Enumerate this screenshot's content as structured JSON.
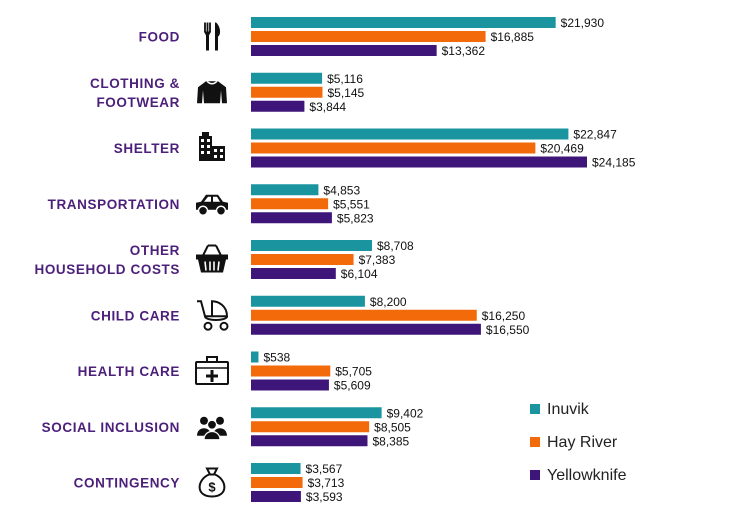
{
  "chart_data": {
    "type": "bar",
    "orientation": "horizontal",
    "categories": [
      [
        "FOOD"
      ],
      [
        "CLOTHING &",
        "FOOTWEAR"
      ],
      [
        "SHELTER"
      ],
      [
        "TRANSPORTATION"
      ],
      [
        "OTHER",
        "HOUSEHOLD COSTS"
      ],
      [
        "CHILD CARE"
      ],
      [
        "HEALTH CARE"
      ],
      [
        "SOCIAL INCLUSION"
      ],
      [
        "CONTINGENCY"
      ]
    ],
    "icons": [
      "fork-knife-icon",
      "sweater-icon",
      "building-icon",
      "car-icon",
      "basket-icon",
      "stroller-icon",
      "first-aid-kit-icon",
      "people-icon",
      "money-bag-icon"
    ],
    "series": [
      {
        "name": "Inuvik",
        "color": "#1a95a0",
        "values": [
          21930,
          5116,
          22847,
          4853,
          8708,
          8200,
          538,
          9402,
          3567
        ],
        "labels": [
          "$21,930",
          "$5,116",
          "$22,847",
          "$4,853",
          "$8,708",
          "$8,200",
          "$538",
          "$9,402",
          "$3,567"
        ]
      },
      {
        "name": "Hay River",
        "color": "#f26a0a",
        "values": [
          16885,
          5145,
          20469,
          5551,
          7383,
          16250,
          5705,
          8505,
          3713
        ],
        "labels": [
          "$16,885",
          "$5,145",
          "$20,469",
          "$5,551",
          "$7,383",
          "$16,250",
          "$5,705",
          "$8,505",
          "$3,713"
        ]
      },
      {
        "name": "Yellowknife",
        "color": "#3e1679",
        "values": [
          13362,
          3844,
          24185,
          5823,
          6104,
          16550,
          5609,
          8385,
          3593
        ],
        "labels": [
          "$13,362",
          "$3,844",
          "$24,185",
          "$5,823",
          "$6,104",
          "$16,550",
          "$5,609",
          "$8,385",
          "$3,593"
        ]
      }
    ],
    "legend_position": "bottom-right",
    "grid": false
  }
}
